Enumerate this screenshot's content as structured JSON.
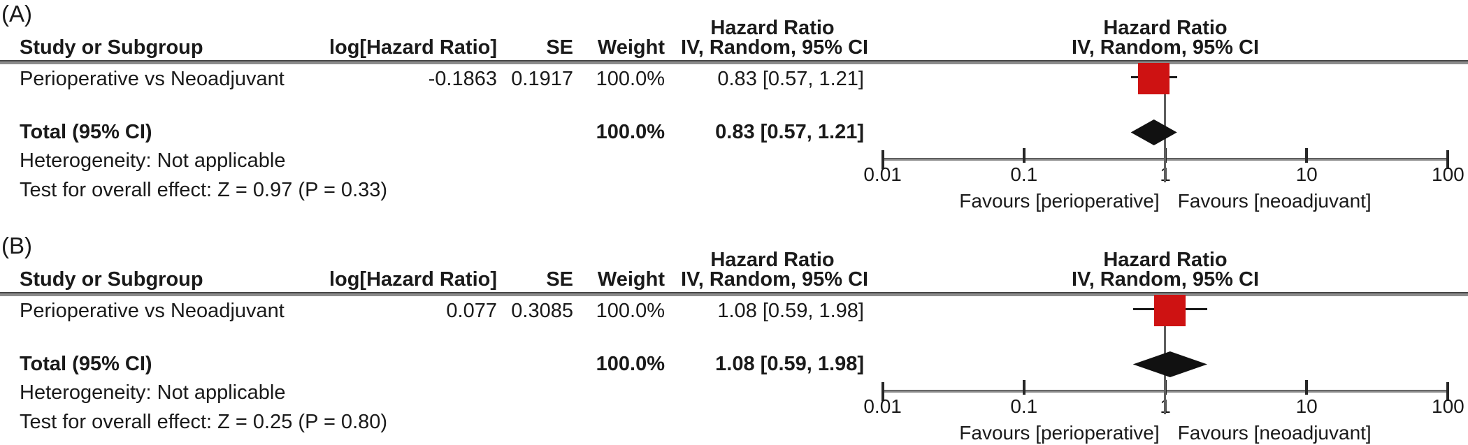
{
  "colors": {
    "marker_red": "#ce1212",
    "diamond_black": "#111111",
    "line_gray": "#8c8c8c",
    "text": "#1a1a1a"
  },
  "headers": {
    "study": "Study or Subgroup",
    "log_hr": "log[Hazard Ratio]",
    "se": "SE",
    "weight": "Weight",
    "hr_line1": "Hazard Ratio",
    "hr_line2": "IV, Random, 95% CI"
  },
  "panels": [
    {
      "panel_label": "(A)",
      "study_row": {
        "name": "Perioperative vs Neoadjuvant",
        "log_hr": "-0.1863",
        "se": "0.1917",
        "weight": "100.0%",
        "ci_text": "0.83 [0.57, 1.21]"
      },
      "total_row": {
        "label": "Total (95% CI)",
        "weight": "100.0%",
        "ci_text": "0.83 [0.57, 1.21]"
      },
      "heterogeneity": "Heterogeneity: Not applicable",
      "overall_effect": "Test for overall effect: Z = 0.97 (P = 0.33)",
      "axis_tick_labels": [
        "0.01",
        "0.1",
        "1",
        "10",
        "100"
      ],
      "favours_left": "Favours [perioperative]",
      "favours_right": "Favours [neoadjuvant]"
    },
    {
      "panel_label": "(B)",
      "study_row": {
        "name": "Perioperative vs Neoadjuvant",
        "log_hr": "0.077",
        "se": "0.3085",
        "weight": "100.0%",
        "ci_text": "1.08 [0.59, 1.98]"
      },
      "total_row": {
        "label": "Total (95% CI)",
        "weight": "100.0%",
        "ci_text": "1.08 [0.59, 1.98]"
      },
      "heterogeneity": "Heterogeneity: Not applicable",
      "overall_effect": "Test for overall effect: Z = 0.25 (P = 0.80)",
      "axis_tick_labels": [
        "0.01",
        "0.1",
        "1",
        "10",
        "100"
      ],
      "favours_left": "Favours [perioperative]",
      "favours_right": "Favours [neoadjuvant]"
    }
  ],
  "chart_data": [
    {
      "type": "forest",
      "title": "(A)",
      "effect_measure": "Hazard Ratio",
      "model": "IV, Random, 95% CI",
      "x_scale": "log10",
      "x_ticks": [
        0.01,
        0.1,
        1,
        10,
        100
      ],
      "x_range": [
        0.01,
        100
      ],
      "reference_line": 1,
      "studies": [
        {
          "name": "Perioperative vs Neoadjuvant",
          "log_hr": -0.1863,
          "se": 0.1917,
          "weight_pct": 100.0,
          "hr": 0.83,
          "ci95": [
            0.57,
            1.21
          ]
        }
      ],
      "total": {
        "label": "Total (95% CI)",
        "weight_pct": 100.0,
        "hr": 0.83,
        "ci95": [
          0.57,
          1.21
        ]
      },
      "heterogeneity": "Not applicable",
      "test_overall_effect": "Z = 0.97 (P = 0.33)",
      "favours_left": "Favours [perioperative]",
      "favours_right": "Favours [neoadjuvant]"
    },
    {
      "type": "forest",
      "title": "(B)",
      "effect_measure": "Hazard Ratio",
      "model": "IV, Random, 95% CI",
      "x_scale": "log10",
      "x_ticks": [
        0.01,
        0.1,
        1,
        10,
        100
      ],
      "x_range": [
        0.01,
        100
      ],
      "reference_line": 1,
      "studies": [
        {
          "name": "Perioperative vs Neoadjuvant",
          "log_hr": 0.077,
          "se": 0.3085,
          "weight_pct": 100.0,
          "hr": 1.08,
          "ci95": [
            0.59,
            1.98
          ]
        }
      ],
      "total": {
        "label": "Total (95% CI)",
        "weight_pct": 100.0,
        "hr": 1.08,
        "ci95": [
          0.59,
          1.98
        ]
      },
      "heterogeneity": "Not applicable",
      "test_overall_effect": "Z = 0.25 (P = 0.80)",
      "favours_left": "Favours [perioperative]",
      "favours_right": "Favours [neoadjuvant]"
    }
  ]
}
